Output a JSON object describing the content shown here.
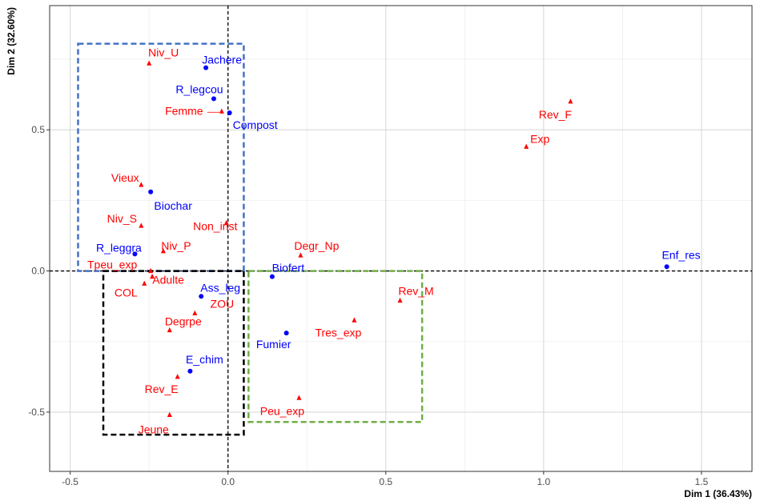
{
  "chart_data": {
    "type": "scatter",
    "xlabel": "Dim 1 (36.43%)",
    "ylabel": "Dim 2 (32.60%)",
    "xlim": [
      -0.565,
      1.66
    ],
    "ylim": [
      -0.71,
      0.94
    ],
    "x_ticks": [
      -0.5,
      0.0,
      0.5,
      1.0,
      1.5
    ],
    "x_tick_labels": [
      "-0.5",
      "0.0",
      "0.5",
      "1.0",
      "1.5"
    ],
    "y_ticks": [
      -0.5,
      0.0,
      0.5
    ],
    "y_tick_labels": [
      "-0.5",
      "0.0",
      "0.5"
    ],
    "grid": true,
    "reference_lines": {
      "x": 0,
      "y": 0,
      "style": "dashed"
    },
    "series": [
      {
        "marker": "circle",
        "color": "#0000ff",
        "points": [
          {
            "label": "Jachere",
            "x": -0.07,
            "y": 0.72
          },
          {
            "label": "R_legcou",
            "x": -0.045,
            "y": 0.61
          },
          {
            "label": "Compost",
            "x": 0.005,
            "y": 0.56
          },
          {
            "label": "Biochar",
            "x": -0.245,
            "y": 0.28
          },
          {
            "label": "R_leggra",
            "x": -0.295,
            "y": 0.06
          },
          {
            "label": "Biofert",
            "x": 0.14,
            "y": -0.02
          },
          {
            "label": "Ass_leg",
            "x": -0.085,
            "y": -0.09
          },
          {
            "label": "Fumier",
            "x": 0.185,
            "y": -0.22
          },
          {
            "label": "E_chim",
            "x": -0.12,
            "y": -0.355
          },
          {
            "label": "Enf_res",
            "x": 1.39,
            "y": 0.015
          }
        ]
      },
      {
        "marker": "triangle",
        "color": "#ff0000",
        "points": [
          {
            "label": "Niv_U",
            "x": -0.25,
            "y": 0.735
          },
          {
            "label": "Femme",
            "x": -0.02,
            "y": 0.565
          },
          {
            "label": "Vieux",
            "x": -0.275,
            "y": 0.305
          },
          {
            "label": "Niv_S",
            "x": -0.275,
            "y": 0.16
          },
          {
            "label": "Non_inst",
            "x": -0.005,
            "y": 0.17
          },
          {
            "label": "Niv_P",
            "x": -0.205,
            "y": 0.07
          },
          {
            "label": "Tpeu_exp",
            "x": -0.245,
            "y": 0.0
          },
          {
            "label": "Adulte",
            "x": -0.24,
            "y": -0.02
          },
          {
            "label": "COL",
            "x": -0.265,
            "y": -0.045
          },
          {
            "label": "ZOU",
            "x": -0.105,
            "y": -0.15
          },
          {
            "label": "Degrpe",
            "x": -0.185,
            "y": -0.21
          },
          {
            "label": "Rev_E",
            "x": -0.16,
            "y": -0.375
          },
          {
            "label": "Jeune",
            "x": -0.185,
            "y": -0.51
          },
          {
            "label": "Degr_Np",
            "x": 0.23,
            "y": 0.055
          },
          {
            "label": "Tres_exp",
            "x": 0.4,
            "y": -0.175
          },
          {
            "label": "Peu_exp",
            "x": 0.225,
            "y": -0.45
          },
          {
            "label": "Rev_M",
            "x": 0.545,
            "y": -0.105
          },
          {
            "label": "Exp",
            "x": 0.945,
            "y": 0.44
          },
          {
            "label": "Rev_F",
            "x": 1.085,
            "y": 0.6
          }
        ]
      }
    ],
    "boxes": [
      {
        "color": "#4472c4",
        "x0": -0.475,
        "x1": 0.05,
        "y0": 0.0,
        "y1": 0.805
      },
      {
        "color": "#000000",
        "x0": -0.395,
        "x1": 0.05,
        "y0": -0.58,
        "y1": 0.0
      },
      {
        "color": "#70ad47",
        "x0": 0.065,
        "x1": 0.615,
        "y0": -0.535,
        "y1": 0.0
      }
    ]
  }
}
